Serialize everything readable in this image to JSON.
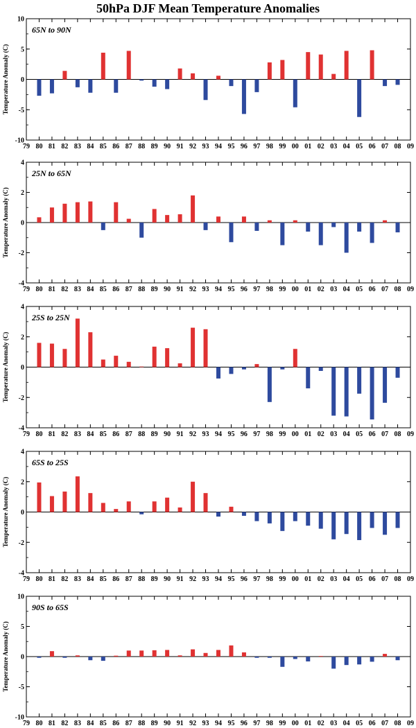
{
  "title": "50hPa DJF Mean Temperature Anomalies",
  "colors": {
    "positive": "#e03232",
    "negative": "#2e4a9e",
    "axis": "#000000"
  },
  "chart_data": [
    {
      "type": "bar",
      "region": "65N to 90N",
      "ylabel": "Temperature Anomaly (C)",
      "ylim": [
        -10,
        10
      ],
      "yticks": [
        -10,
        -5,
        0,
        5,
        10
      ],
      "xticks": [
        "79",
        "80",
        "81",
        "82",
        "83",
        "84",
        "85",
        "86",
        "87",
        "88",
        "89",
        "90",
        "91",
        "92",
        "93",
        "94",
        "95",
        "96",
        "97",
        "98",
        "99",
        "00",
        "01",
        "02",
        "03",
        "04",
        "05",
        "06",
        "07",
        "08",
        "09"
      ],
      "categories": [
        "80",
        "81",
        "82",
        "83",
        "84",
        "85",
        "86",
        "87",
        "88",
        "89",
        "90",
        "91",
        "92",
        "93",
        "94",
        "95",
        "96",
        "97",
        "98",
        "99",
        "00",
        "01",
        "02",
        "03",
        "04",
        "05",
        "06",
        "07",
        "08"
      ],
      "values": [
        -2.7,
        -2.3,
        1.4,
        -1.3,
        -2.2,
        4.4,
        -2.2,
        4.7,
        -0.2,
        -1.2,
        -1.6,
        1.8,
        1.0,
        -3.4,
        0.6,
        -1.1,
        -5.7,
        -2.1,
        2.8,
        3.2,
        -4.6,
        4.5,
        4.1,
        0.9,
        4.7,
        -6.2,
        4.8,
        -1.1,
        -0.9
      ]
    },
    {
      "type": "bar",
      "region": "25N to 65N",
      "ylabel": "Temperature Anomaly (C)",
      "ylim": [
        -4,
        4
      ],
      "yticks": [
        -4,
        -2,
        0,
        2,
        4
      ],
      "xticks": [
        "79",
        "80",
        "81",
        "82",
        "83",
        "84",
        "85",
        "86",
        "87",
        "88",
        "89",
        "90",
        "91",
        "92",
        "93",
        "94",
        "95",
        "96",
        "97",
        "98",
        "99",
        "00",
        "01",
        "02",
        "03",
        "04",
        "05",
        "06",
        "07",
        "08",
        "09"
      ],
      "categories": [
        "80",
        "81",
        "82",
        "83",
        "84",
        "85",
        "86",
        "87",
        "88",
        "89",
        "90",
        "91",
        "92",
        "93",
        "94",
        "95",
        "96",
        "97",
        "98",
        "99",
        "00",
        "01",
        "02",
        "03",
        "04",
        "05",
        "06",
        "07",
        "08"
      ],
      "values": [
        0.35,
        1.0,
        1.25,
        1.35,
        1.4,
        -0.5,
        1.35,
        0.25,
        -1.0,
        0.9,
        0.5,
        0.55,
        1.8,
        -0.5,
        0.4,
        -1.3,
        0.4,
        -0.55,
        0.15,
        -1.5,
        0.15,
        -0.6,
        -1.5,
        -0.3,
        -2.0,
        -0.6,
        -1.35,
        0.15,
        -0.65
      ]
    },
    {
      "type": "bar",
      "region": "25S to 25N",
      "ylabel": "Temperature Anomaly (C)",
      "ylim": [
        -4,
        4
      ],
      "yticks": [
        -4,
        -2,
        0,
        2,
        4
      ],
      "xticks": [
        "79",
        "80",
        "81",
        "82",
        "83",
        "84",
        "85",
        "86",
        "87",
        "88",
        "89",
        "90",
        "91",
        "92",
        "93",
        "94",
        "95",
        "96",
        "97",
        "98",
        "99",
        "00",
        "01",
        "02",
        "03",
        "04",
        "05",
        "06",
        "07",
        "08",
        "09"
      ],
      "categories": [
        "80",
        "81",
        "82",
        "83",
        "84",
        "85",
        "86",
        "87",
        "88",
        "89",
        "90",
        "91",
        "92",
        "93",
        "94",
        "95",
        "96",
        "97",
        "98",
        "99",
        "00",
        "01",
        "02",
        "03",
        "04",
        "05",
        "06",
        "07",
        "08"
      ],
      "values": [
        1.6,
        1.55,
        1.2,
        3.2,
        2.3,
        0.5,
        0.75,
        0.35,
        0.0,
        1.35,
        1.25,
        0.25,
        2.6,
        2.5,
        -0.75,
        -0.45,
        -0.15,
        0.2,
        -2.3,
        -0.15,
        1.2,
        -1.4,
        -0.25,
        -3.2,
        -3.25,
        -1.75,
        -3.45,
        -2.35,
        -0.7
      ]
    },
    {
      "type": "bar",
      "region": "65S to 25S",
      "ylabel": "Temperature Anomaly (C)",
      "ylim": [
        -4,
        4
      ],
      "yticks": [
        -4,
        -2,
        0,
        2,
        4
      ],
      "xticks": [
        "79",
        "80",
        "81",
        "82",
        "83",
        "84",
        "85",
        "86",
        "87",
        "88",
        "89",
        "90",
        "91",
        "92",
        "93",
        "94",
        "95",
        "96",
        "97",
        "98",
        "99",
        "00",
        "01",
        "02",
        "03",
        "04",
        "05",
        "06",
        "07",
        "08",
        "09"
      ],
      "categories": [
        "80",
        "81",
        "82",
        "83",
        "84",
        "85",
        "86",
        "87",
        "88",
        "89",
        "90",
        "91",
        "92",
        "93",
        "94",
        "95",
        "96",
        "97",
        "98",
        "99",
        "00",
        "01",
        "02",
        "03",
        "04",
        "05",
        "06",
        "07",
        "08"
      ],
      "values": [
        1.95,
        1.05,
        1.35,
        2.35,
        1.25,
        0.6,
        0.2,
        0.7,
        -0.15,
        0.7,
        0.95,
        0.3,
        2.0,
        1.25,
        -0.3,
        0.35,
        -0.25,
        -0.6,
        -0.75,
        -1.25,
        -0.6,
        -0.9,
        -1.1,
        -1.8,
        -1.45,
        -1.85,
        -1.05,
        -1.5,
        -1.05
      ]
    },
    {
      "type": "bar",
      "region": "90S to 65S",
      "ylabel": "Temperature Anomaly (C)",
      "ylim": [
        -10,
        10
      ],
      "yticks": [
        -10,
        -5,
        0,
        5,
        10
      ],
      "xticks": [
        "79",
        "80",
        "81",
        "82",
        "83",
        "84",
        "85",
        "86",
        "87",
        "88",
        "89",
        "90",
        "91",
        "92",
        "93",
        "94",
        "95",
        "96",
        "97",
        "98",
        "99",
        "00",
        "01",
        "02",
        "03",
        "04",
        "05",
        "06",
        "07",
        "08",
        "09"
      ],
      "categories": [
        "80",
        "81",
        "82",
        "83",
        "84",
        "85",
        "86",
        "87",
        "88",
        "89",
        "90",
        "91",
        "92",
        "93",
        "94",
        "95",
        "96",
        "97",
        "98",
        "99",
        "00",
        "01",
        "02",
        "03",
        "04",
        "05",
        "06",
        "07",
        "08"
      ],
      "values": [
        -0.2,
        0.9,
        -0.2,
        0.2,
        -0.6,
        -0.7,
        0.15,
        1.0,
        1.0,
        1.05,
        1.1,
        0.2,
        1.2,
        0.6,
        1.1,
        1.85,
        0.7,
        -0.2,
        -0.2,
        -1.7,
        -0.4,
        -0.8,
        0.1,
        -2.0,
        -1.4,
        -1.3,
        -0.85,
        0.45,
        -0.6
      ]
    }
  ]
}
